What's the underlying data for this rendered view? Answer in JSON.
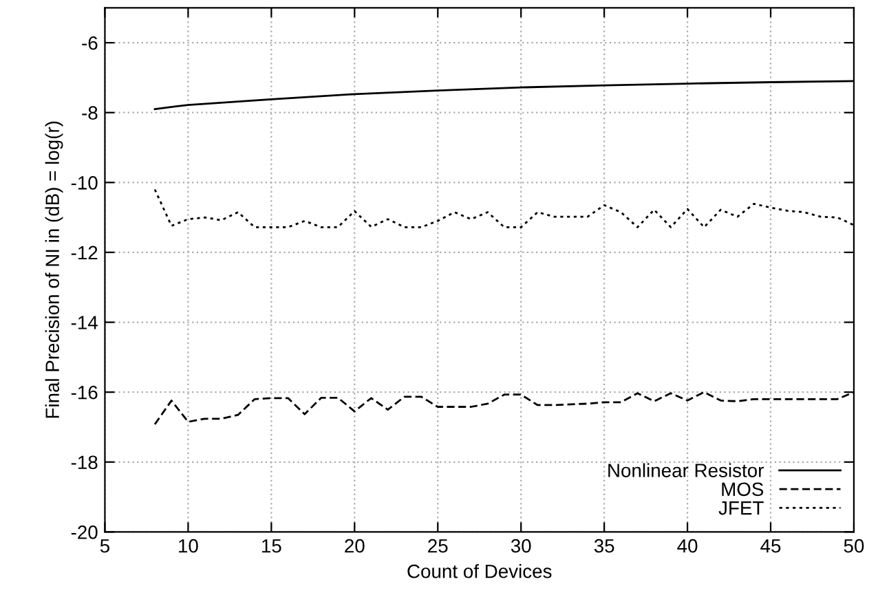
{
  "chart_data": {
    "type": "line",
    "xlabel": "Count of Devices",
    "ylabel": "Final Precision of NI in (dB) = log(r)",
    "xlim": [
      5,
      50
    ],
    "xticks": [
      5,
      10,
      15,
      20,
      25,
      30,
      35,
      40,
      45,
      50
    ],
    "ylim": [
      -20,
      -5
    ],
    "yticks": [
      -20,
      -18,
      -16,
      -14,
      -12,
      -10,
      -8,
      -6
    ],
    "grid": true,
    "legend": "bottom right",
    "marker": "none",
    "series": [
      {
        "name": "Nonlinear Resistor",
        "color": "#000000",
        "line_style": "solid",
        "x": [
          8,
          10,
          15,
          20,
          25,
          30,
          35,
          40,
          45,
          50
        ],
        "values": [
          -7.9,
          -7.78,
          -7.62,
          -7.47,
          -7.37,
          -7.28,
          -7.22,
          -7.17,
          -7.13,
          -7.1
        ]
      },
      {
        "name": "MOS",
        "color": "#000000",
        "line_style": "dashed",
        "x": [
          8,
          9,
          10,
          11,
          12,
          13,
          14,
          15,
          16,
          17,
          18,
          19,
          20,
          21,
          22,
          23,
          24,
          25,
          26,
          27,
          28,
          29,
          30,
          31,
          32,
          33,
          34,
          35,
          36,
          37,
          38,
          39,
          40,
          41,
          42,
          43,
          44,
          45,
          46,
          47,
          48,
          49,
          50
        ],
        "values": [
          -16.92,
          -16.24,
          -16.85,
          -16.76,
          -16.76,
          -16.65,
          -16.2,
          -16.17,
          -16.17,
          -16.63,
          -16.16,
          -16.16,
          -16.55,
          -16.17,
          -16.5,
          -16.13,
          -16.13,
          -16.42,
          -16.42,
          -16.42,
          -16.33,
          -16.07,
          -16.07,
          -16.37,
          -16.37,
          -16.35,
          -16.33,
          -16.29,
          -16.29,
          -16.03,
          -16.26,
          -16.03,
          -16.24,
          -16.0,
          -16.24,
          -16.26,
          -16.2,
          -16.2,
          -16.2,
          -16.2,
          -16.2,
          -16.2,
          -16.0
        ]
      },
      {
        "name": "JFET",
        "color": "#000000",
        "line_style": "dotted",
        "x": [
          8,
          9,
          10,
          11,
          12,
          13,
          14,
          15,
          16,
          17,
          18,
          19,
          20,
          21,
          22,
          23,
          24,
          25,
          26,
          27,
          28,
          29,
          30,
          31,
          32,
          33,
          34,
          35,
          36,
          37,
          38,
          39,
          40,
          41,
          42,
          43,
          44,
          45,
          46,
          47,
          48,
          49,
          50
        ],
        "values": [
          -10.2,
          -11.24,
          -11.05,
          -11.0,
          -11.08,
          -10.85,
          -11.28,
          -11.28,
          -11.28,
          -11.1,
          -11.28,
          -11.28,
          -10.82,
          -11.27,
          -11.05,
          -11.28,
          -11.28,
          -11.1,
          -10.85,
          -11.05,
          -10.85,
          -11.28,
          -11.28,
          -10.85,
          -10.98,
          -10.98,
          -10.98,
          -10.65,
          -10.85,
          -11.28,
          -10.78,
          -11.28,
          -10.76,
          -11.28,
          -10.78,
          -10.98,
          -10.61,
          -10.72,
          -10.81,
          -10.85,
          -10.98,
          -11.0,
          -11.22
        ]
      }
    ]
  }
}
